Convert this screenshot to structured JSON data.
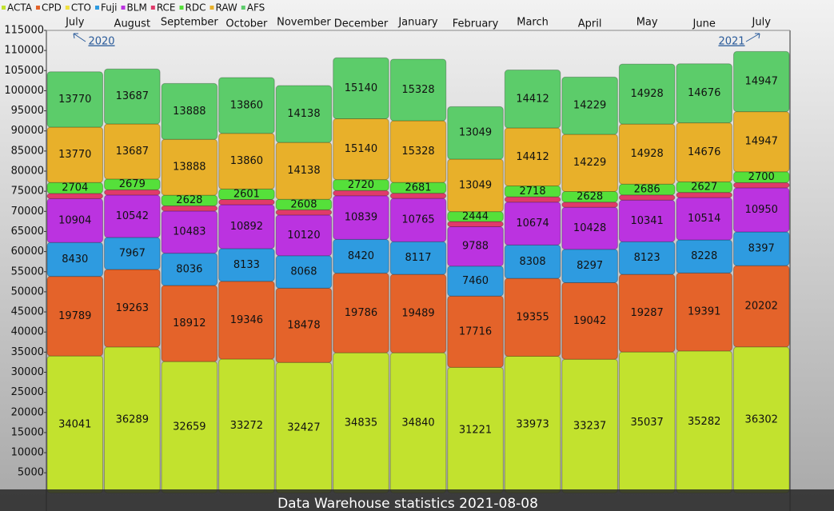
{
  "chart_data": {
    "type": "stacked-bar",
    "title": "Data Warehouse statistics 2021-08-08",
    "categories": [
      "July",
      "August",
      "September",
      "October",
      "November",
      "December",
      "January",
      "February",
      "March",
      "April",
      "May",
      "June",
      "July"
    ],
    "annotations": [
      "2020",
      "2021"
    ],
    "ylim": [
      -4500,
      115000
    ],
    "yticks": [
      5000,
      10000,
      15000,
      20000,
      25000,
      30000,
      35000,
      40000,
      45000,
      50000,
      55000,
      60000,
      65000,
      70000,
      75000,
      80000,
      85000,
      90000,
      95000,
      100000,
      105000,
      110000,
      115000
    ],
    "series": [
      {
        "name": "ACTA",
        "color": "#c2e22e",
        "show_labels": true,
        "values": [
          34041,
          36289,
          32659,
          33272,
          32427,
          34835,
          34840,
          31221,
          33973,
          33237,
          35037,
          35282,
          36302
        ]
      },
      {
        "name": "CPD",
        "color": "#e4632a",
        "show_labels": true,
        "values": [
          19789,
          19263,
          18912,
          19346,
          18478,
          19786,
          19489,
          17716,
          19355,
          19042,
          19287,
          19391,
          20202
        ]
      },
      {
        "name": "CTO",
        "color": "#f0e040",
        "show_labels": false,
        "values": [
          0,
          0,
          0,
          0,
          0,
          0,
          0,
          0,
          0,
          0,
          0,
          0,
          0
        ]
      },
      {
        "name": "Fuji",
        "color": "#2e9be0",
        "show_labels": true,
        "values": [
          8430,
          7967,
          8036,
          8133,
          8068,
          8420,
          8117,
          7460,
          8308,
          8297,
          8123,
          8228,
          8397
        ]
      },
      {
        "name": "BLM",
        "color": "#bb33e0",
        "show_labels": true,
        "values": [
          10904,
          10542,
          10483,
          10892,
          10120,
          10839,
          10765,
          9788,
          10674,
          10428,
          10341,
          10514,
          10950
        ]
      },
      {
        "name": "RCE",
        "color": "#e03a6a",
        "show_labels": false,
        "values": [
          1300,
          1300,
          1300,
          1300,
          1300,
          1300,
          1300,
          1300,
          1300,
          1300,
          1300,
          1300,
          1300
        ]
      },
      {
        "name": "RDC",
        "color": "#55e03a",
        "show_labels": true,
        "values": [
          2704,
          2679,
          2628,
          2601,
          2608,
          2720,
          2681,
          2444,
          2718,
          2628,
          2686,
          2627,
          2700
        ]
      },
      {
        "name": "RAW",
        "color": "#e8b02a",
        "show_labels": true,
        "values": [
          13770,
          13687,
          13888,
          13860,
          14138,
          15140,
          15328,
          13049,
          14412,
          14229,
          14928,
          14676,
          14947
        ]
      },
      {
        "name": "AFS",
        "color": "#5ccc6a",
        "show_labels": true,
        "values": [
          13770,
          13687,
          13888,
          13860,
          14138,
          15140,
          15328,
          13049,
          14412,
          14229,
          14928,
          14676,
          14947
        ]
      }
    ]
  }
}
